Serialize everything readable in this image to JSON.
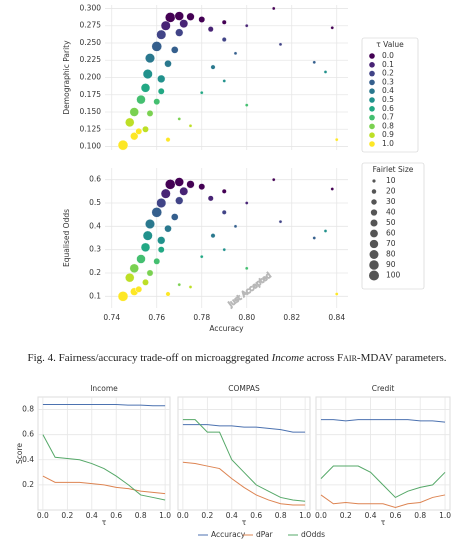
{
  "chart_data": [
    {
      "type": "scatter",
      "y_label": "Demographic Parity",
      "xlim": [
        0.737,
        0.845
      ],
      "ylim": [
        0.095,
        0.305
      ],
      "yticks": [
        {
          "value": 0.1,
          "label": "0.100"
        },
        {
          "value": 0.125,
          "label": "0.125"
        },
        {
          "value": 0.15,
          "label": "0.150"
        },
        {
          "value": 0.175,
          "label": "0.175"
        },
        {
          "value": 0.2,
          "label": "0.200"
        },
        {
          "value": 0.225,
          "label": "0.225"
        },
        {
          "value": 0.25,
          "label": "0.250"
        },
        {
          "value": 0.275,
          "label": "0.275"
        },
        {
          "value": 0.3,
          "label": "0.300"
        }
      ],
      "points": {
        "x": [
          0.766,
          0.77,
          0.775,
          0.78,
          0.79,
          0.812,
          0.838,
          0.764,
          0.772,
          0.784,
          0.8,
          0.762,
          0.77,
          0.79,
          0.815,
          0.76,
          0.768,
          0.795,
          0.83,
          0.757,
          0.765,
          0.785,
          0.756,
          0.762,
          0.79,
          0.835,
          0.755,
          0.762,
          0.78,
          0.753,
          0.76,
          0.8,
          0.75,
          0.757,
          0.77,
          0.748,
          0.755,
          0.775,
          0.745,
          0.75,
          0.752,
          0.765,
          0.84
        ],
        "y": [
          0.287,
          0.289,
          0.288,
          0.284,
          0.28,
          0.3,
          0.272,
          0.275,
          0.278,
          0.27,
          0.275,
          0.262,
          0.265,
          0.255,
          0.248,
          0.245,
          0.24,
          0.235,
          0.222,
          0.228,
          0.22,
          0.215,
          0.205,
          0.198,
          0.195,
          0.208,
          0.185,
          0.18,
          0.178,
          0.168,
          0.165,
          0.16,
          0.15,
          0.148,
          0.14,
          0.135,
          0.125,
          0.13,
          0.102,
          0.115,
          0.122,
          0.11,
          0.11
        ],
        "tau": [
          0,
          0,
          0,
          0,
          0,
          0,
          0,
          0.1,
          0.1,
          0.1,
          0.1,
          0.2,
          0.2,
          0.2,
          0.2,
          0.3,
          0.3,
          0.3,
          0.3,
          0.4,
          0.4,
          0.4,
          0.5,
          0.5,
          0.5,
          0.5,
          0.6,
          0.6,
          0.6,
          0.7,
          0.7,
          0.7,
          0.8,
          0.8,
          0.8,
          0.9,
          0.9,
          0.9,
          1,
          1,
          1,
          1,
          1
        ],
        "size": [
          100,
          80,
          60,
          40,
          20,
          10,
          10,
          90,
          70,
          30,
          10,
          90,
          60,
          20,
          10,
          100,
          50,
          10,
          10,
          90,
          50,
          20,
          90,
          60,
          10,
          10,
          80,
          40,
          10,
          80,
          40,
          10,
          80,
          40,
          10,
          80,
          40,
          10,
          100,
          60,
          40,
          20,
          10
        ]
      },
      "color_legend": {
        "title": "τ Value",
        "values": [
          {
            "value": 0,
            "label": "0.0"
          },
          0.1,
          0.2,
          0.3,
          0.4,
          0.5,
          0.6,
          0.7,
          0.8,
          0.9,
          {
            "value": 1,
            "label": "1.0"
          }
        ],
        "colors": [
          "#440154",
          "#482475",
          "#414487",
          "#355f8d",
          "#2a788e",
          "#21918c",
          "#22a884",
          "#44bf70",
          "#7ad151",
          "#bddf26",
          "#fde725"
        ]
      }
    },
    {
      "type": "scatter",
      "y_label": "Equalised Odds",
      "x_label": "Accuracy",
      "xlim": [
        0.737,
        0.845
      ],
      "ylim": [
        0.05,
        0.65
      ],
      "xticks": [
        0.74,
        0.76,
        0.78,
        {
          "value": 0.8,
          "label": "0.80"
        },
        0.82,
        0.84
      ],
      "yticks": [
        0.1,
        0.2,
        0.3,
        0.4,
        0.5,
        0.6
      ],
      "points": {
        "x": [
          0.766,
          0.77,
          0.775,
          0.78,
          0.79,
          0.812,
          0.838,
          0.764,
          0.772,
          0.784,
          0.8,
          0.762,
          0.77,
          0.79,
          0.815,
          0.76,
          0.768,
          0.795,
          0.83,
          0.757,
          0.765,
          0.785,
          0.756,
          0.762,
          0.79,
          0.835,
          0.755,
          0.762,
          0.78,
          0.753,
          0.76,
          0.8,
          0.75,
          0.757,
          0.77,
          0.748,
          0.755,
          0.775,
          0.745,
          0.75,
          0.752,
          0.765,
          0.84
        ],
        "y": [
          0.58,
          0.59,
          0.58,
          0.57,
          0.55,
          0.6,
          0.56,
          0.54,
          0.55,
          0.52,
          0.5,
          0.5,
          0.51,
          0.46,
          0.42,
          0.46,
          0.44,
          0.4,
          0.35,
          0.41,
          0.39,
          0.36,
          0.36,
          0.34,
          0.3,
          0.38,
          0.31,
          0.3,
          0.27,
          0.26,
          0.25,
          0.22,
          0.22,
          0.2,
          0.15,
          0.18,
          0.16,
          0.14,
          0.1,
          0.12,
          0.13,
          0.11,
          0.11
        ],
        "tau": [
          0,
          0,
          0,
          0,
          0,
          0,
          0,
          0.1,
          0.1,
          0.1,
          0.1,
          0.2,
          0.2,
          0.2,
          0.2,
          0.3,
          0.3,
          0.3,
          0.3,
          0.4,
          0.4,
          0.4,
          0.5,
          0.5,
          0.5,
          0.5,
          0.6,
          0.6,
          0.6,
          0.7,
          0.7,
          0.7,
          0.8,
          0.8,
          0.8,
          0.9,
          0.9,
          0.9,
          1,
          1,
          1,
          1,
          1
        ],
        "size": [
          100,
          80,
          60,
          40,
          20,
          10,
          10,
          90,
          70,
          30,
          10,
          90,
          60,
          20,
          10,
          100,
          50,
          10,
          10,
          90,
          50,
          20,
          90,
          60,
          10,
          10,
          80,
          40,
          10,
          80,
          40,
          10,
          80,
          40,
          10,
          80,
          40,
          10,
          100,
          60,
          40,
          20,
          10
        ]
      },
      "size_legend": {
        "title": "Fairlet Size",
        "values": [
          10,
          20,
          30,
          40,
          50,
          60,
          70,
          80,
          90,
          100
        ]
      }
    },
    {
      "type": "line",
      "title": "Income",
      "y_label": "Score",
      "x_label": "τ",
      "xlim": [
        -0.04,
        1.04
      ],
      "ylim": [
        0,
        0.9
      ],
      "xticks": [
        {
          "value": 0,
          "label": "0.0"
        },
        0.2,
        0.4,
        0.6,
        0.8,
        {
          "value": 1,
          "label": "1.0"
        }
      ],
      "yticks": [
        0.2,
        0.4,
        0.6,
        0.8
      ],
      "x": [
        0,
        0.1,
        0.2,
        0.3,
        0.4,
        0.5,
        0.6,
        0.7,
        0.8,
        0.9,
        1
      ],
      "series": [
        {
          "name": "Accuracy",
          "color": "#4c72b0",
          "values": [
            0.84,
            0.84,
            0.84,
            0.84,
            0.84,
            0.84,
            0.84,
            0.835,
            0.835,
            0.83,
            0.83
          ]
        },
        {
          "name": "dPar",
          "color": "#dd8452",
          "values": [
            0.27,
            0.22,
            0.22,
            0.22,
            0.21,
            0.2,
            0.18,
            0.17,
            0.15,
            0.14,
            0.13
          ]
        },
        {
          "name": "dOdds",
          "color": "#55a868",
          "values": [
            0.6,
            0.42,
            0.41,
            0.4,
            0.37,
            0.33,
            0.27,
            0.2,
            0.12,
            0.1,
            0.08
          ]
        }
      ]
    },
    {
      "type": "line",
      "title": "COMPAS",
      "x_label": "τ",
      "xlim": [
        -0.04,
        1.04
      ],
      "ylim": [
        0,
        0.9
      ],
      "xticks": [
        {
          "value": 0,
          "label": "0.0"
        },
        0.2,
        0.4,
        0.6,
        0.8,
        {
          "value": 1,
          "label": "1.0"
        }
      ],
      "x": [
        0,
        0.1,
        0.2,
        0.3,
        0.4,
        0.5,
        0.6,
        0.7,
        0.8,
        0.9,
        1
      ],
      "series": [
        {
          "color": "#4c72b0",
          "values": [
            0.68,
            0.68,
            0.68,
            0.67,
            0.67,
            0.66,
            0.66,
            0.65,
            0.64,
            0.62,
            0.62
          ]
        },
        {
          "color": "#dd8452",
          "values": [
            0.38,
            0.37,
            0.35,
            0.33,
            0.25,
            0.18,
            0.12,
            0.08,
            0.05,
            0.04,
            0.04
          ]
        },
        {
          "color": "#55a868",
          "values": [
            0.72,
            0.72,
            0.62,
            0.62,
            0.4,
            0.3,
            0.2,
            0.15,
            0.1,
            0.08,
            0.07
          ]
        }
      ]
    },
    {
      "type": "line",
      "title": "Credit",
      "x_label": "τ",
      "xlim": [
        -0.04,
        1.04
      ],
      "ylim": [
        0,
        0.9
      ],
      "xticks": [
        {
          "value": 0,
          "label": "0.0"
        },
        0.2,
        0.4,
        0.6,
        0.8,
        {
          "value": 1,
          "label": "1.0"
        }
      ],
      "x": [
        0,
        0.1,
        0.2,
        0.3,
        0.4,
        0.5,
        0.6,
        0.7,
        0.8,
        0.9,
        1
      ],
      "series": [
        {
          "color": "#4c72b0",
          "values": [
            0.72,
            0.72,
            0.71,
            0.72,
            0.72,
            0.72,
            0.72,
            0.72,
            0.71,
            0.71,
            0.7
          ]
        },
        {
          "color": "#dd8452",
          "values": [
            0.12,
            0.05,
            0.06,
            0.05,
            0.05,
            0.05,
            0.02,
            0.05,
            0.06,
            0.1,
            0.12
          ]
        },
        {
          "color": "#55a868",
          "values": [
            0.25,
            0.35,
            0.35,
            0.35,
            0.3,
            0.2,
            0.1,
            0.15,
            0.18,
            0.2,
            0.3
          ]
        }
      ]
    }
  ],
  "caption": [
    "Fig. 4.",
    "Fairness/accuracy trade-off on microaggregated",
    "Income",
    "across",
    "Fair-MDAV",
    "parameters."
  ],
  "watermark": "Just Accepted"
}
